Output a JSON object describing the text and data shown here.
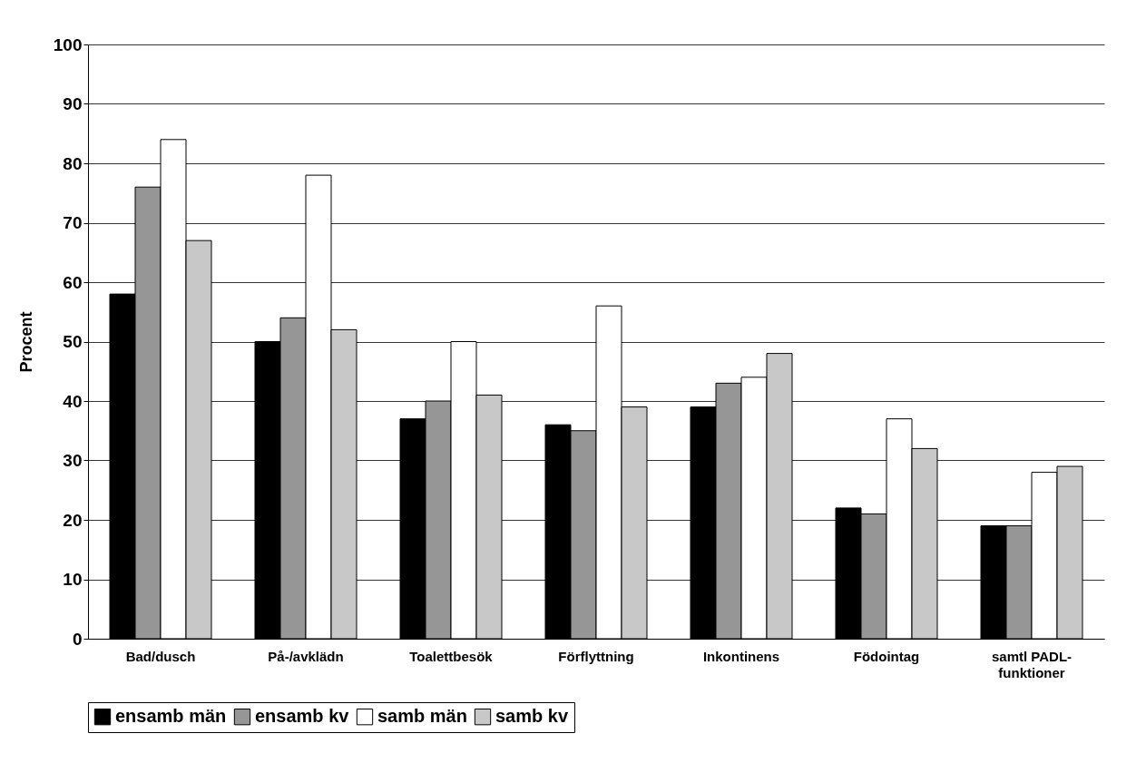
{
  "chart_data": {
    "type": "bar",
    "ylabel": "Procent",
    "categories": [
      "Bad/dusch",
      "På-/avklädn",
      "Toalettbesök",
      "Förflyttning",
      "Inkontinens",
      "Födointag",
      "samtl PADL-funktioner"
    ],
    "series": [
      {
        "name": "ensamb män",
        "color": "#000000",
        "values": [
          58,
          50,
          37,
          36,
          39,
          22,
          19
        ]
      },
      {
        "name": "ensamb kv",
        "color": "#969696",
        "values": [
          76,
          54,
          40,
          35,
          43,
          21,
          19
        ]
      },
      {
        "name": "samb män",
        "color": "#ffffff",
        "values": [
          84,
          78,
          50,
          56,
          44,
          37,
          28
        ]
      },
      {
        "name": "samb kv",
        "color": "#c8c8c8",
        "values": [
          67,
          52,
          41,
          39,
          48,
          32,
          29
        ]
      }
    ],
    "ylim": [
      0,
      100
    ],
    "yticks": [
      0,
      10,
      20,
      30,
      40,
      50,
      60,
      70,
      80,
      90,
      100
    ],
    "grid": "y",
    "legend": "bottom"
  }
}
